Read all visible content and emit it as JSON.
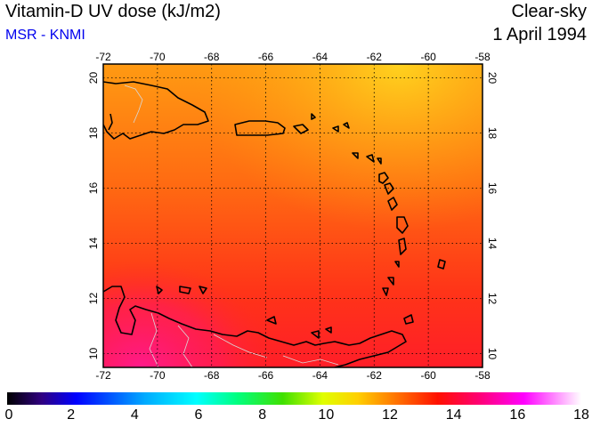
{
  "header": {
    "title": "Vitamin-D UV dose (kJ/m2)",
    "subtitle": "MSR - KNMI",
    "mode": "Clear-sky",
    "date": "1 April 1994"
  },
  "colors": {
    "subtitle": "#0000ee",
    "coast": "#000000",
    "borders": "#d8d8d8",
    "grid": "#000000"
  },
  "map": {
    "lon_range": [
      -72,
      -58
    ],
    "lat_range": [
      9.5,
      20.5
    ],
    "lon_ticks": [
      "-72",
      "-70",
      "-68",
      "-66",
      "-64",
      "-62",
      "-60",
      "-58"
    ],
    "lat_ticks": [
      "10",
      "12",
      "14",
      "16",
      "18",
      "20"
    ]
  },
  "colorbar": {
    "range": [
      0,
      18
    ],
    "labels": [
      "0",
      "2",
      "4",
      "6",
      "8",
      "10",
      "12",
      "14",
      "16",
      "18"
    ]
  }
}
